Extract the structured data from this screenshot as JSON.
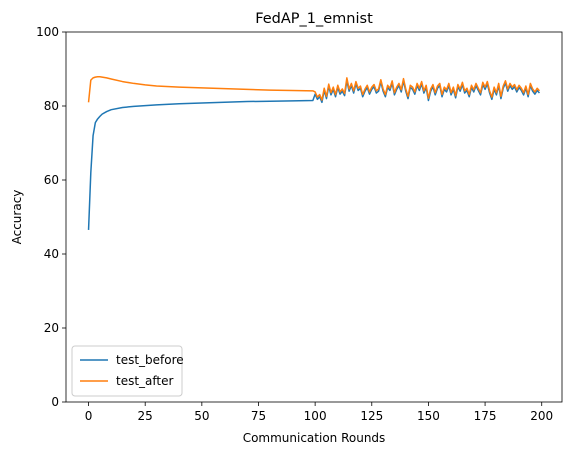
{
  "chart_data": {
    "type": "line",
    "title": "FedAP_1_emnist",
    "xlabel": "Communication Rounds",
    "ylabel": "Accuracy",
    "x": [
      0,
      1,
      2,
      3,
      4,
      5,
      6,
      8,
      10,
      15,
      20,
      25,
      30,
      40,
      50,
      60,
      70,
      80,
      90,
      99,
      100,
      101,
      102,
      103,
      104,
      105,
      106,
      107,
      108,
      109,
      110,
      111,
      112,
      113,
      114,
      115,
      116,
      117,
      118,
      119,
      120,
      121,
      122,
      123,
      124,
      125,
      126,
      127,
      128,
      129,
      130,
      131,
      132,
      133,
      134,
      135,
      136,
      137,
      138,
      139,
      140,
      141,
      142,
      143,
      144,
      145,
      146,
      147,
      148,
      149,
      150,
      151,
      152,
      153,
      154,
      155,
      156,
      157,
      158,
      159,
      160,
      161,
      162,
      163,
      164,
      165,
      166,
      167,
      168,
      169,
      170,
      171,
      172,
      173,
      174,
      175,
      176,
      177,
      178,
      179,
      180,
      181,
      182,
      183,
      184,
      185,
      186,
      187,
      188,
      189,
      190,
      191,
      192,
      193,
      194,
      195,
      196,
      197,
      198,
      199
    ],
    "series": [
      {
        "name": "test_before",
        "color": "#1f77b4",
        "values": [
          46.5,
          62,
          72,
          75.5,
          76.5,
          77.2,
          77.8,
          78.5,
          79,
          79.6,
          79.9,
          80.1,
          80.3,
          80.6,
          80.8,
          81,
          81.2,
          81.3,
          81.4,
          81.5,
          83.2,
          81.8,
          82.5,
          81.0,
          84.2,
          82.0,
          85.3,
          83.0,
          84.5,
          82.5,
          85.0,
          83.2,
          84.0,
          82.8,
          86.8,
          84.0,
          85.5,
          83.5,
          86.0,
          84.2,
          84.8,
          82.5,
          84.0,
          85.0,
          83.2,
          84.5,
          85.2,
          83.5,
          84.0,
          86.5,
          84.0,
          82.5,
          85.0,
          84.2,
          86.2,
          83.0,
          84.5,
          85.5,
          83.8,
          86.8,
          84.0,
          82.0,
          85.0,
          84.5,
          83.2,
          85.5,
          84.2,
          86.0,
          83.5,
          85.0,
          81.5,
          84.0,
          85.2,
          83.0,
          84.8,
          85.5,
          82.5,
          84.5,
          83.8,
          85.5,
          83.0,
          84.5,
          82.2,
          85.2,
          84.0,
          85.8,
          83.5,
          84.2,
          82.5,
          85.0,
          83.8,
          85.5,
          84.2,
          83.0,
          85.8,
          84.5,
          86.0,
          83.5,
          81.8,
          84.5,
          83.0,
          85.5,
          82.0,
          84.8,
          86.2,
          84.0,
          85.5,
          84.5,
          85.2,
          83.8,
          85.0,
          84.2,
          83.0,
          84.8,
          82.5,
          85.5,
          84.0,
          83.2,
          84.2,
          83.5
        ]
      },
      {
        "name": "test_after",
        "color": "#ff7f0e",
        "values": [
          81,
          87,
          87.6,
          87.8,
          87.9,
          87.9,
          87.8,
          87.6,
          87.3,
          86.6,
          86.1,
          85.7,
          85.4,
          85.1,
          84.9,
          84.7,
          84.5,
          84.3,
          84.2,
          84.1,
          83.8,
          82.4,
          83.1,
          81.6,
          84.8,
          82.6,
          85.9,
          83.6,
          85.1,
          83.1,
          85.6,
          83.8,
          84.6,
          83.4,
          87.6,
          84.6,
          86.1,
          84.1,
          86.6,
          84.8,
          85.4,
          83.1,
          84.6,
          85.6,
          83.8,
          85.1,
          85.8,
          84.1,
          84.6,
          87.1,
          84.6,
          83.1,
          85.6,
          84.8,
          86.8,
          83.6,
          85.1,
          86.1,
          84.4,
          87.4,
          84.6,
          82.6,
          85.6,
          85.1,
          83.8,
          86.1,
          84.8,
          86.6,
          84.1,
          85.6,
          82.1,
          84.6,
          85.8,
          83.6,
          85.4,
          86.1,
          83.1,
          85.1,
          84.4,
          86.1,
          83.6,
          85.1,
          82.8,
          85.8,
          84.6,
          86.4,
          84.1,
          84.8,
          83.1,
          85.6,
          84.4,
          86.1,
          84.8,
          83.6,
          86.4,
          85.1,
          86.6,
          84.1,
          82.4,
          85.1,
          83.6,
          86.1,
          82.6,
          85.4,
          86.8,
          84.6,
          86.1,
          85.1,
          85.8,
          84.4,
          85.6,
          84.8,
          83.6,
          85.4,
          83.1,
          86.1,
          84.6,
          83.8,
          84.8,
          84.1
        ]
      }
    ],
    "xlim": [
      -9.95,
      208.95
    ],
    "xticks": [
      0,
      25,
      50,
      75,
      100,
      125,
      150,
      175,
      200
    ],
    "ylim": [
      0,
      100
    ],
    "yticks": [
      0,
      20,
      40,
      60,
      80,
      100
    ],
    "legend": "lower left"
  }
}
